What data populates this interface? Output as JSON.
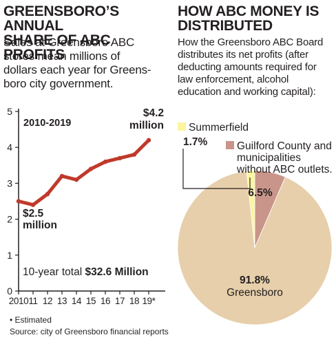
{
  "left": {
    "title": "GREENSBORO’S ANNUAL\nSHARE OF ABC PROFITS",
    "subtitle": "Sales at Greensboro ABC\nstores mean millions of\ndollars each year for Greens-\nboro city government."
  },
  "right": {
    "title": "HOW ABC MONEY IS\nDISTRIBUTED",
    "subtitle": "How the Greensboro ABC Board\ndistributes its net profits (after\ndeducting amounts required for\nlaw enforcement, alcohol\neducation and working capital):"
  },
  "footer": {
    "note": "• Estimated",
    "source": "Source: city of Greensboro financial reports"
  },
  "colors": {
    "line": "#c0392b",
    "greensboro": "#e6cfaa",
    "county": "#c9958a",
    "summerfield": "#fbf5a0"
  },
  "chart_data": [
    {
      "type": "line",
      "x": [
        "2010",
        "11",
        "12",
        "13",
        "14",
        "15",
        "16",
        "17",
        "18",
        "19*"
      ],
      "series": [
        {
          "values": [
            2.5,
            2.4,
            2.7,
            3.2,
            3.1,
            3.4,
            3.6,
            3.7,
            3.8,
            4.2
          ]
        }
      ],
      "ylim": [
        0,
        5
      ],
      "yticks": [
        0,
        1,
        2,
        3,
        4,
        5
      ],
      "grid": false,
      "annotations": {
        "period": "2010-2019",
        "start_value": "$2.5",
        "start_unit": "million",
        "end_value": "$4.2",
        "end_unit": "million",
        "total_prefix": "10-year total ",
        "total_value": "$32.6 Million"
      }
    },
    {
      "type": "pie",
      "slices": [
        {
          "label": "Greensboro",
          "value": 91.8,
          "display": "91.8%"
        },
        {
          "label": "Summerfield",
          "value": 1.7,
          "display": "1.7%"
        },
        {
          "label": "Guilford County and\nmunicipalities\nwithout ABC outlets.",
          "value": 6.5,
          "display": "6.5%"
        }
      ]
    }
  ]
}
